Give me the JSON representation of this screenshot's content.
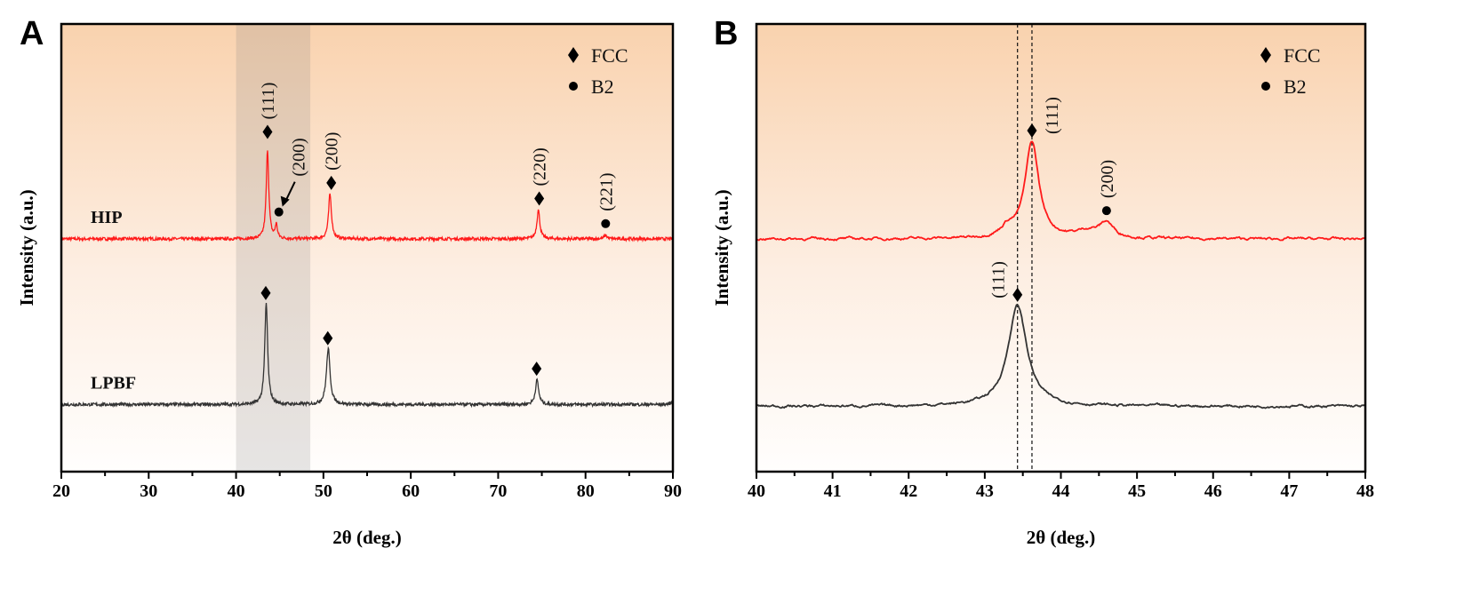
{
  "chart_data": [
    {
      "panel_label": "A",
      "type": "line",
      "xlabel": "2θ (deg.)",
      "ylabel": "Intensity (a.u.)",
      "xlim": [
        20,
        90
      ],
      "xticks": [
        "20",
        "30",
        "40",
        "50",
        "60",
        "70",
        "80",
        "90"
      ],
      "ylim": [
        0,
        100
      ],
      "y_ticks_shown": false,
      "grid": false,
      "background": "vertical gradient, peach to white",
      "highlight_band": {
        "x": [
          40,
          48.5
        ],
        "color": "#808080"
      },
      "legend": {
        "placement": "top-right",
        "entries": [
          {
            "symbol": "diamond",
            "label": "FCC"
          },
          {
            "symbol": "circle",
            "label": "B2"
          }
        ]
      },
      "series": [
        {
          "name": "HIP",
          "color": "#ff1a1a",
          "baseline": 52,
          "peaks": [
            {
              "x": 43.6,
              "height": 20,
              "fwhm": 0.35
            },
            {
              "x": 44.6,
              "height": 3,
              "fwhm": 0.3
            },
            {
              "x": 50.75,
              "height": 10,
              "fwhm": 0.4
            },
            {
              "x": 74.6,
              "height": 6.5,
              "fwhm": 0.4
            },
            {
              "x": 82.3,
              "height": 0.8,
              "fwhm": 0.4
            }
          ]
        },
        {
          "name": "LPBF",
          "color": "#333333",
          "baseline": 15,
          "peaks": [
            {
              "x": 43.45,
              "height": 22.5,
              "fwhm": 0.4
            },
            {
              "x": 50.55,
              "height": 12.5,
              "fwhm": 0.5
            },
            {
              "x": 74.45,
              "height": 5.5,
              "fwhm": 0.45
            },
            {
              "x": 90.2,
              "height": 3,
              "fwhm": 0.3
            }
          ]
        }
      ],
      "markers": [
        {
          "x": 43.6,
          "y": 75.9,
          "symbol": "diamond",
          "label": "(111)"
        },
        {
          "x": 44.9,
          "y": 58,
          "symbol": "circle",
          "label": "(200)",
          "arrow": true
        },
        {
          "x": 50.9,
          "y": 64.5,
          "symbol": "diamond",
          "label": "(200)"
        },
        {
          "x": 74.7,
          "y": 61,
          "symbol": "diamond",
          "label": "(220)"
        },
        {
          "x": 82.3,
          "y": 55.4,
          "symbol": "circle",
          "label": "(221)"
        },
        {
          "x": 43.4,
          "y": 39.9,
          "symbol": "diamond",
          "label": ""
        },
        {
          "x": 50.5,
          "y": 29.8,
          "symbol": "diamond",
          "label": ""
        },
        {
          "x": 74.4,
          "y": 23,
          "symbol": "diamond",
          "label": ""
        }
      ]
    },
    {
      "panel_label": "B",
      "type": "line",
      "xlabel": "2θ (deg.)",
      "ylabel": "Intensity (a.u.)",
      "xlim": [
        40,
        48
      ],
      "xticks": [
        "40",
        "41",
        "42",
        "43",
        "44",
        "45",
        "46",
        "47",
        "48"
      ],
      "ylim": [
        0,
        100
      ],
      "y_ticks_shown": false,
      "grid": false,
      "background": "vertical gradient, peach to white",
      "reference_lines": [
        43.43,
        43.62
      ],
      "legend": {
        "placement": "top-right",
        "entries": [
          {
            "symbol": "diamond",
            "label": "FCC"
          },
          {
            "symbol": "circle",
            "label": "B2"
          }
        ]
      },
      "series": [
        {
          "name": "HIP",
          "color": "#ff1a1a",
          "baseline": 52,
          "peaks": [
            {
              "x": 43.62,
              "height": 21.5,
              "fwhm": 0.22
            },
            {
              "x": 43.3,
              "height": 2,
              "fwhm": 0.2
            },
            {
              "x": 44.6,
              "height": 3.3,
              "fwhm": 0.22
            },
            {
              "x": 44.35,
              "height": 1.5,
              "fwhm": 0.35
            }
          ]
        },
        {
          "name": "LPBF",
          "color": "#333333",
          "baseline": 14.6,
          "peaks": [
            {
              "x": 43.43,
              "height": 22.5,
              "fwhm": 0.3
            }
          ]
        }
      ],
      "markers": [
        {
          "x": 43.62,
          "y": 76.2,
          "symbol": "diamond",
          "label": "(111)",
          "label_side": "right"
        },
        {
          "x": 44.6,
          "y": 58.3,
          "symbol": "circle",
          "label": "(200)"
        },
        {
          "x": 43.43,
          "y": 39.5,
          "symbol": "diamond",
          "label": "(111)",
          "label_side": "left"
        }
      ]
    }
  ]
}
